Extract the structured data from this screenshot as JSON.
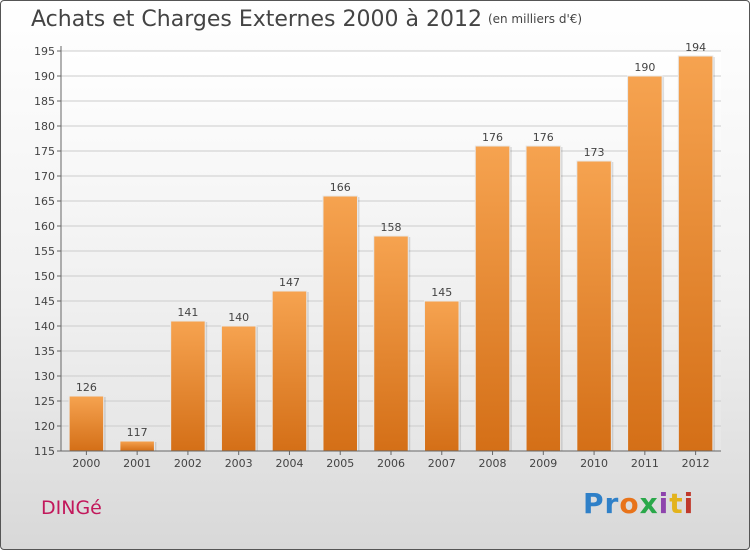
{
  "title": "Achats et Charges Externes 2000 à 2012",
  "subtitle": "(en milliers d'€)",
  "place": "DINGé",
  "logo": {
    "text": "Proxiti",
    "colors": [
      "#2f80c8",
      "#2f80c8",
      "#e8731a",
      "#2aa84a",
      "#8e44ad",
      "#e3b31c",
      "#c0392b"
    ]
  },
  "colors": {
    "bar_light": "#f6a350",
    "bar_dark": "#d46f17",
    "place": "#c2185b",
    "grid": "#cccccc"
  },
  "chart_data": {
    "type": "bar",
    "categories": [
      "2000",
      "2001",
      "2002",
      "2003",
      "2004",
      "2005",
      "2006",
      "2007",
      "2008",
      "2009",
      "2010",
      "2011",
      "2012"
    ],
    "values": [
      126,
      117,
      141,
      140,
      147,
      166,
      158,
      145,
      176,
      176,
      173,
      190,
      194
    ],
    "title": "Achats et Charges Externes 2000 à 2012",
    "subtitle": "(en milliers d'€)",
    "xlabel": "",
    "ylabel": "",
    "ylim": [
      115,
      195
    ],
    "yticks": [
      115,
      120,
      125,
      130,
      135,
      140,
      145,
      150,
      155,
      160,
      165,
      170,
      175,
      180,
      185,
      190,
      195
    ],
    "grid": true,
    "data_labels": true
  }
}
